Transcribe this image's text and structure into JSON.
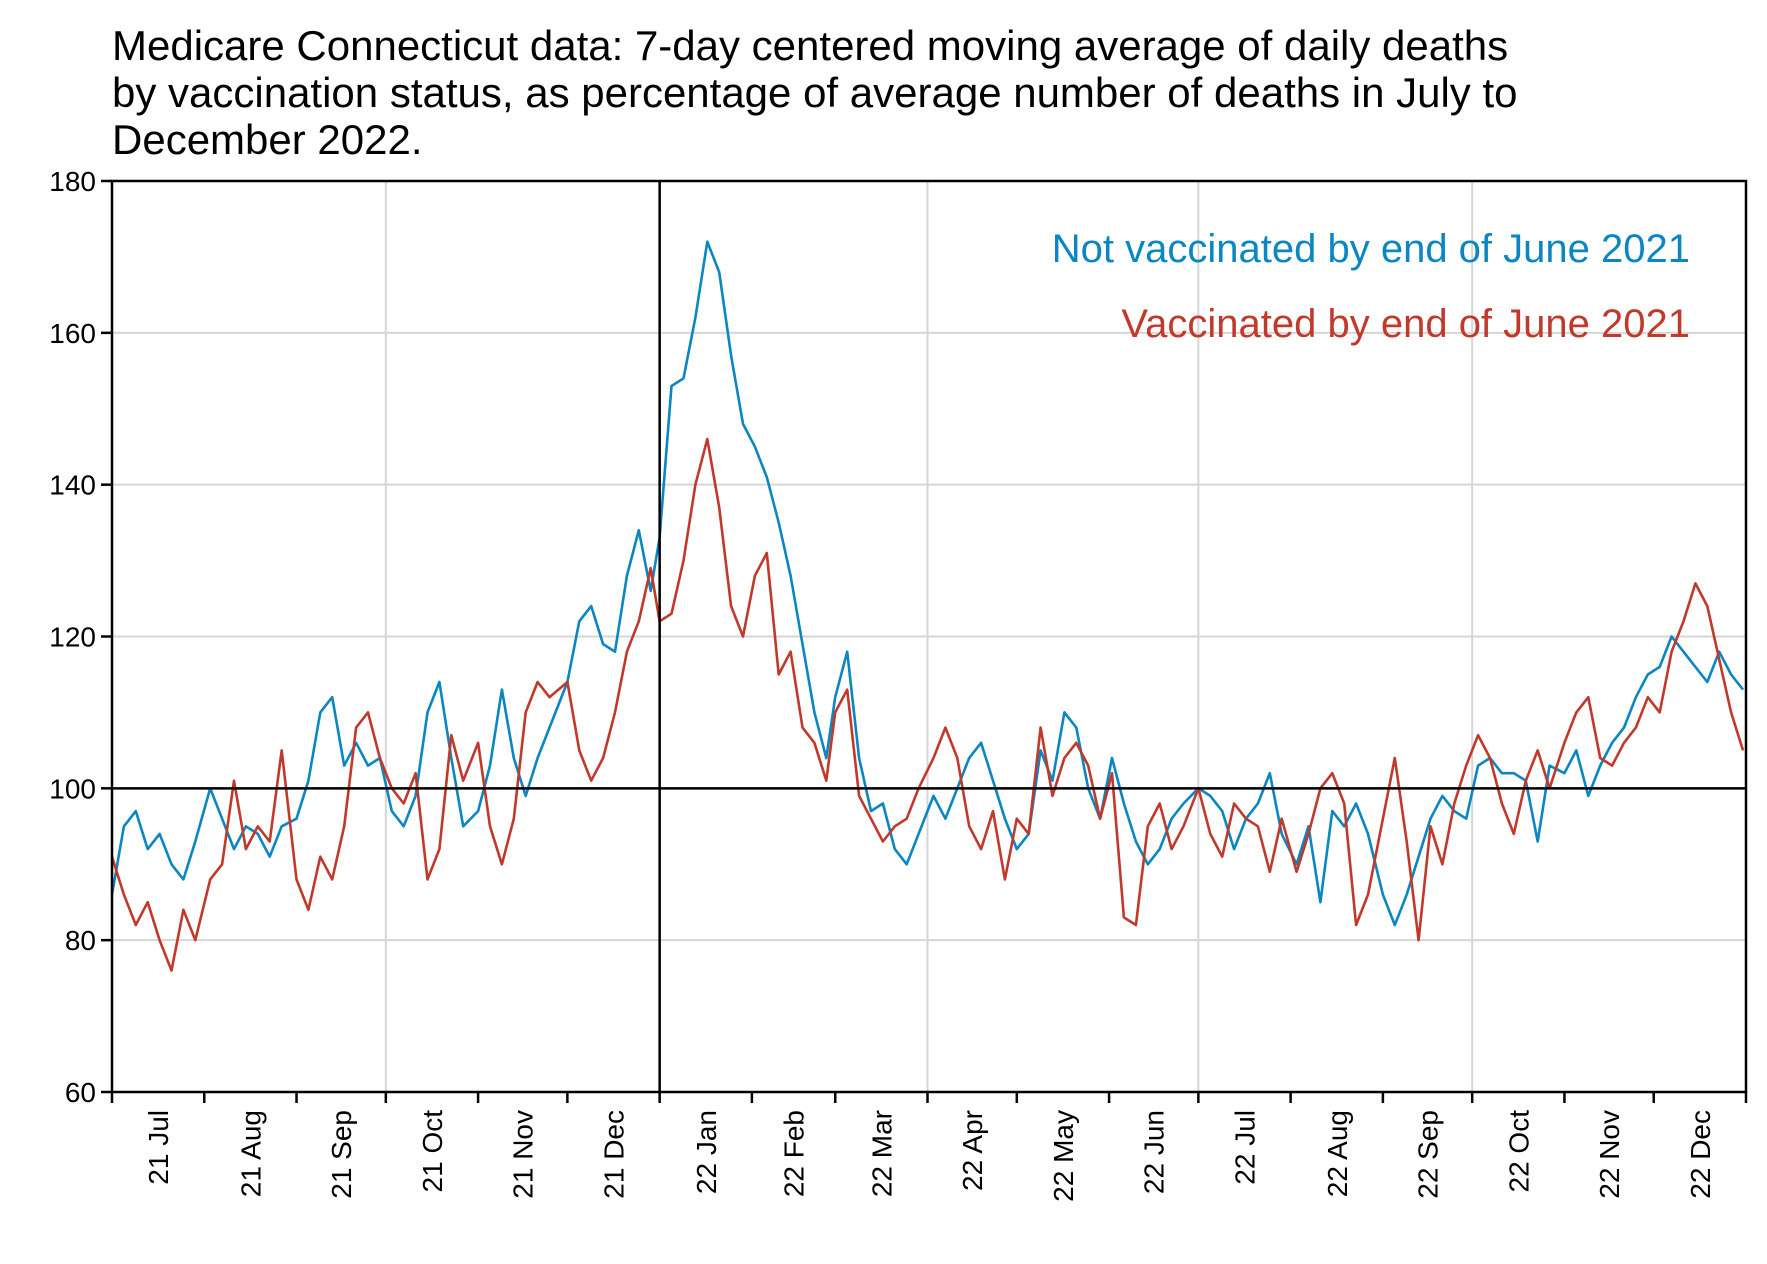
{
  "chart_data": {
    "type": "line",
    "title_lines": [
      "Medicare Connecticut data: 7-day centered moving average of daily deaths",
      "by vaccination status, as percentage of average number of deaths in July to",
      "December 2022."
    ],
    "xlabel": "",
    "ylabel": "",
    "ylim": [
      60,
      180
    ],
    "yticks": [
      "60",
      "80",
      "100",
      "120",
      "140",
      "160",
      "180"
    ],
    "xlim": [
      "2021-07-01",
      "2022-12-31"
    ],
    "xticks": [
      "21 Jul",
      "21 Aug",
      "21 Sep",
      "21 Oct",
      "21 Nov",
      "21 Dec",
      "22 Jan",
      "22 Feb",
      "22 Mar",
      "22 Apr",
      "22 May",
      "22 Jun",
      "22 Jul",
      "22 Aug",
      "22 Sep",
      "22 Oct",
      "22 Nov",
      "22 Dec"
    ],
    "reference_lines": {
      "y": 100,
      "x": "2022-01-01"
    },
    "grid": true,
    "legend_position": "top-right",
    "series": [
      {
        "name": "Not vaccinated by end of June 2021",
        "color": "#0a86c2",
        "x": [
          "2021-07-01",
          "2021-07-05",
          "2021-07-09",
          "2021-07-13",
          "2021-07-17",
          "2021-07-21",
          "2021-07-25",
          "2021-07-29",
          "2021-08-03",
          "2021-08-07",
          "2021-08-11",
          "2021-08-15",
          "2021-08-19",
          "2021-08-23",
          "2021-08-27",
          "2021-09-01",
          "2021-09-05",
          "2021-09-09",
          "2021-09-13",
          "2021-09-17",
          "2021-09-21",
          "2021-09-25",
          "2021-09-29",
          "2021-10-03",
          "2021-10-07",
          "2021-10-11",
          "2021-10-15",
          "2021-10-19",
          "2021-10-23",
          "2021-10-27",
          "2021-11-01",
          "2021-11-05",
          "2021-11-09",
          "2021-11-13",
          "2021-11-17",
          "2021-11-21",
          "2021-11-25",
          "2021-12-01",
          "2021-12-05",
          "2021-12-09",
          "2021-12-13",
          "2021-12-17",
          "2021-12-21",
          "2021-12-25",
          "2021-12-29",
          "2022-01-01",
          "2022-01-05",
          "2022-01-09",
          "2022-01-13",
          "2022-01-17",
          "2022-01-21",
          "2022-01-25",
          "2022-01-29",
          "2022-02-02",
          "2022-02-06",
          "2022-02-10",
          "2022-02-14",
          "2022-02-18",
          "2022-02-22",
          "2022-02-26",
          "2022-03-01",
          "2022-03-05",
          "2022-03-09",
          "2022-03-13",
          "2022-03-17",
          "2022-03-21",
          "2022-03-25",
          "2022-03-29",
          "2022-04-03",
          "2022-04-07",
          "2022-04-11",
          "2022-04-15",
          "2022-04-19",
          "2022-04-23",
          "2022-04-27",
          "2022-05-01",
          "2022-05-05",
          "2022-05-09",
          "2022-05-13",
          "2022-05-17",
          "2022-05-21",
          "2022-05-25",
          "2022-05-29",
          "2022-06-02",
          "2022-06-06",
          "2022-06-10",
          "2022-06-14",
          "2022-06-18",
          "2022-06-22",
          "2022-06-26",
          "2022-07-01",
          "2022-07-05",
          "2022-07-09",
          "2022-07-13",
          "2022-07-17",
          "2022-07-21",
          "2022-07-25",
          "2022-07-29",
          "2022-08-03",
          "2022-08-07",
          "2022-08-11",
          "2022-08-15",
          "2022-08-19",
          "2022-08-23",
          "2022-08-27",
          "2022-09-01",
          "2022-09-05",
          "2022-09-09",
          "2022-09-13",
          "2022-09-17",
          "2022-09-21",
          "2022-09-25",
          "2022-09-29",
          "2022-10-03",
          "2022-10-07",
          "2022-10-11",
          "2022-10-15",
          "2022-10-19",
          "2022-10-23",
          "2022-10-27",
          "2022-11-01",
          "2022-11-05",
          "2022-11-09",
          "2022-11-13",
          "2022-11-17",
          "2022-11-21",
          "2022-11-25",
          "2022-11-29",
          "2022-12-03",
          "2022-12-07",
          "2022-12-11",
          "2022-12-15",
          "2022-12-19",
          "2022-12-23",
          "2022-12-27",
          "2022-12-31"
        ],
        "values": [
          86,
          95,
          97,
          92,
          94,
          90,
          88,
          93,
          100,
          96,
          92,
          95,
          94,
          91,
          95,
          96,
          101,
          110,
          112,
          103,
          106,
          103,
          104,
          97,
          95,
          99,
          110,
          114,
          104,
          95,
          97,
          103,
          113,
          104,
          99,
          104,
          108,
          114,
          122,
          124,
          119,
          118,
          128,
          134,
          126,
          133,
          153,
          154,
          162,
          172,
          168,
          157,
          148,
          145,
          141,
          135,
          128,
          119,
          110,
          104,
          112,
          118,
          104,
          97,
          98,
          92,
          90,
          94,
          99,
          96,
          100,
          104,
          106,
          101,
          96,
          92,
          94,
          105,
          101,
          110,
          108,
          100,
          96,
          104,
          98,
          93,
          90,
          92,
          96,
          98,
          100,
          99,
          97,
          92,
          96,
          98,
          102,
          94,
          90,
          95,
          85,
          97,
          95,
          98,
          94,
          86,
          82,
          86,
          91,
          96,
          99,
          97,
          96,
          103,
          104,
          102,
          102,
          101,
          93,
          103,
          102,
          105,
          99,
          103,
          106,
          108,
          112,
          115,
          116,
          120,
          118,
          116,
          114,
          118,
          115,
          113
        ]
      },
      {
        "name": "Vaccinated by end of June 2021",
        "color": "#c0392b",
        "x": [
          "2021-07-01",
          "2021-07-05",
          "2021-07-09",
          "2021-07-13",
          "2021-07-17",
          "2021-07-21",
          "2021-07-25",
          "2021-07-29",
          "2021-08-03",
          "2021-08-07",
          "2021-08-11",
          "2021-08-15",
          "2021-08-19",
          "2021-08-23",
          "2021-08-27",
          "2021-09-01",
          "2021-09-05",
          "2021-09-09",
          "2021-09-13",
          "2021-09-17",
          "2021-09-21",
          "2021-09-25",
          "2021-09-29",
          "2021-10-03",
          "2021-10-07",
          "2021-10-11",
          "2021-10-15",
          "2021-10-19",
          "2021-10-23",
          "2021-10-27",
          "2021-11-01",
          "2021-11-05",
          "2021-11-09",
          "2021-11-13",
          "2021-11-17",
          "2021-11-21",
          "2021-11-25",
          "2021-12-01",
          "2021-12-05",
          "2021-12-09",
          "2021-12-13",
          "2021-12-17",
          "2021-12-21",
          "2021-12-25",
          "2021-12-29",
          "2022-01-01",
          "2022-01-05",
          "2022-01-09",
          "2022-01-13",
          "2022-01-17",
          "2022-01-21",
          "2022-01-25",
          "2022-01-29",
          "2022-02-02",
          "2022-02-06",
          "2022-02-10",
          "2022-02-14",
          "2022-02-18",
          "2022-02-22",
          "2022-02-26",
          "2022-03-01",
          "2022-03-05",
          "2022-03-09",
          "2022-03-13",
          "2022-03-17",
          "2022-03-21",
          "2022-03-25",
          "2022-03-29",
          "2022-04-03",
          "2022-04-07",
          "2022-04-11",
          "2022-04-15",
          "2022-04-19",
          "2022-04-23",
          "2022-04-27",
          "2022-05-01",
          "2022-05-05",
          "2022-05-09",
          "2022-05-13",
          "2022-05-17",
          "2022-05-21",
          "2022-05-25",
          "2022-05-29",
          "2022-06-02",
          "2022-06-06",
          "2022-06-10",
          "2022-06-14",
          "2022-06-18",
          "2022-06-22",
          "2022-06-26",
          "2022-07-01",
          "2022-07-05",
          "2022-07-09",
          "2022-07-13",
          "2022-07-17",
          "2022-07-21",
          "2022-07-25",
          "2022-07-29",
          "2022-08-03",
          "2022-08-07",
          "2022-08-11",
          "2022-08-15",
          "2022-08-19",
          "2022-08-23",
          "2022-08-27",
          "2022-09-01",
          "2022-09-05",
          "2022-09-09",
          "2022-09-13",
          "2022-09-17",
          "2022-09-21",
          "2022-09-25",
          "2022-09-29",
          "2022-10-03",
          "2022-10-07",
          "2022-10-11",
          "2022-10-15",
          "2022-10-19",
          "2022-10-23",
          "2022-10-27",
          "2022-11-01",
          "2022-11-05",
          "2022-11-09",
          "2022-11-13",
          "2022-11-17",
          "2022-11-21",
          "2022-11-25",
          "2022-11-29",
          "2022-12-03",
          "2022-12-07",
          "2022-12-11",
          "2022-12-15",
          "2022-12-19",
          "2022-12-23",
          "2022-12-27",
          "2022-12-31"
        ],
        "values": [
          91,
          86,
          82,
          85,
          80,
          76,
          84,
          80,
          88,
          90,
          101,
          92,
          95,
          93,
          105,
          88,
          84,
          91,
          88,
          95,
          108,
          110,
          104,
          100,
          98,
          102,
          88,
          92,
          107,
          101,
          106,
          95,
          90,
          96,
          110,
          114,
          112,
          114,
          105,
          101,
          104,
          110,
          118,
          122,
          129,
          122,
          123,
          130,
          140,
          146,
          137,
          124,
          120,
          128,
          131,
          115,
          118,
          108,
          106,
          101,
          110,
          113,
          99,
          96,
          93,
          95,
          96,
          100,
          104,
          108,
          104,
          95,
          92,
          97,
          88,
          96,
          94,
          108,
          99,
          104,
          106,
          103,
          96,
          102,
          83,
          82,
          95,
          98,
          92,
          95,
          100,
          94,
          91,
          98,
          96,
          95,
          89,
          96,
          89,
          94,
          100,
          102,
          98,
          82,
          86,
          96,
          104,
          93,
          80,
          95,
          90,
          98,
          103,
          107,
          104,
          98,
          94,
          101,
          105,
          100,
          106,
          110,
          112,
          104,
          103,
          106,
          108,
          112,
          110,
          118,
          122,
          127,
          124,
          117,
          110,
          105
        ]
      }
    ]
  }
}
